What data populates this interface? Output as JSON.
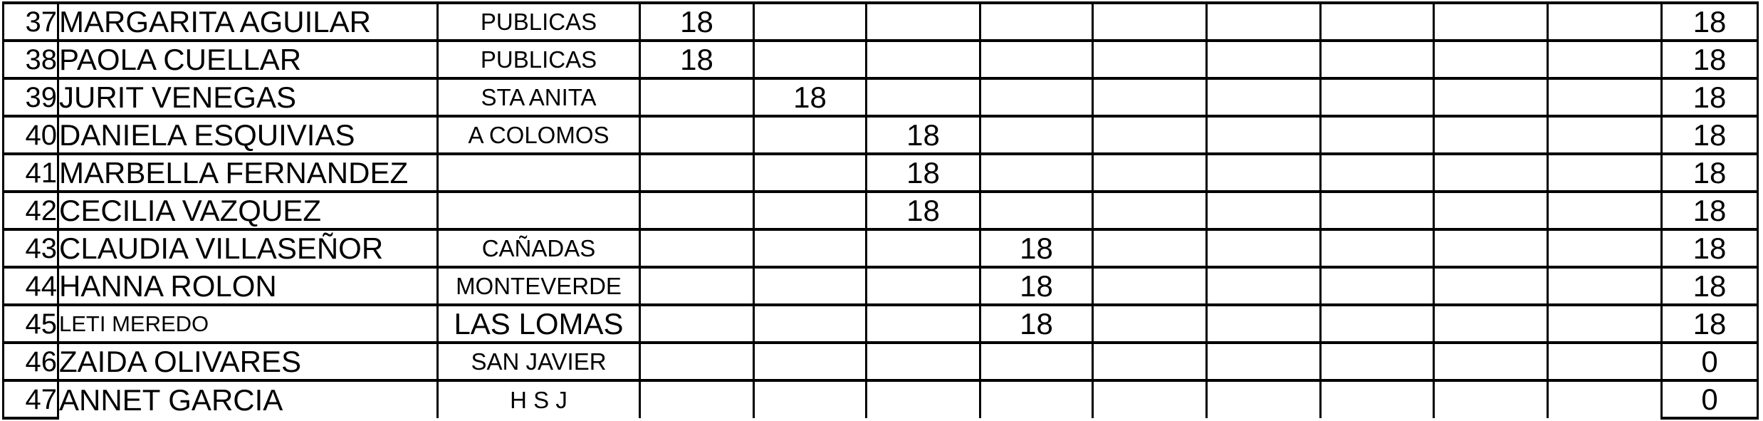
{
  "rows": [
    {
      "num": "37",
      "name": "MARGARITA AGUILAR",
      "location": "PUBLICAS",
      "values": [
        "18",
        "",
        "",
        "",
        "",
        "",
        "",
        "",
        ""
      ],
      "total": "18"
    },
    {
      "num": "38",
      "name": "PAOLA CUELLAR",
      "location": "PUBLICAS",
      "values": [
        "18",
        "",
        "",
        "",
        "",
        "",
        "",
        "",
        ""
      ],
      "total": "18"
    },
    {
      "num": "39",
      "name": "JURIT VENEGAS",
      "location": "STA ANITA",
      "values": [
        "",
        "18",
        "",
        "",
        "",
        "",
        "",
        "",
        ""
      ],
      "total": "18"
    },
    {
      "num": "40",
      "name": "DANIELA ESQUIVIAS",
      "location": "A COLOMOS",
      "values": [
        "",
        "",
        "18",
        "",
        "",
        "",
        "",
        "",
        ""
      ],
      "total": "18"
    },
    {
      "num": "41",
      "name": "MARBELLA FERNANDEZ",
      "location": "",
      "values": [
        "",
        "",
        "18",
        "",
        "",
        "",
        "",
        "",
        ""
      ],
      "total": "18"
    },
    {
      "num": "42",
      "name": "CECILIA VAZQUEZ",
      "location": "",
      "values": [
        "",
        "",
        "18",
        "",
        "",
        "",
        "",
        "",
        ""
      ],
      "total": "18"
    },
    {
      "num": "43",
      "name": "CLAUDIA VILLASEÑOR",
      "location": "CAÑADAS",
      "values": [
        "",
        "",
        "",
        "18",
        "",
        "",
        "",
        "",
        ""
      ],
      "total": "18"
    },
    {
      "num": "44",
      "name": "HANNA ROLON",
      "location": "MONTEVERDE",
      "values": [
        "",
        "",
        "",
        "18",
        "",
        "",
        "",
        "",
        ""
      ],
      "total": "18"
    },
    {
      "num": "45",
      "name": "LETI MEREDO",
      "location": "LAS LOMAS",
      "values": [
        "",
        "",
        "",
        "18",
        "",
        "",
        "",
        "",
        ""
      ],
      "total": "18",
      "name_style": "small",
      "location_style": "large"
    },
    {
      "num": "46",
      "name": "ZAIDA OLIVARES",
      "location": "SAN JAVIER",
      "values": [
        "",
        "",
        "",
        "",
        "",
        "",
        "",
        "",
        ""
      ],
      "total": "0"
    },
    {
      "num": "47",
      "name": "ANNET GARCIA",
      "location": "H S J",
      "values": [
        "",
        "",
        "",
        "",
        "",
        "",
        "",
        "",
        ""
      ],
      "total": "0"
    }
  ],
  "colors": {
    "grid_line": "#000000",
    "text": "#000000",
    "background": "#ffffff"
  }
}
